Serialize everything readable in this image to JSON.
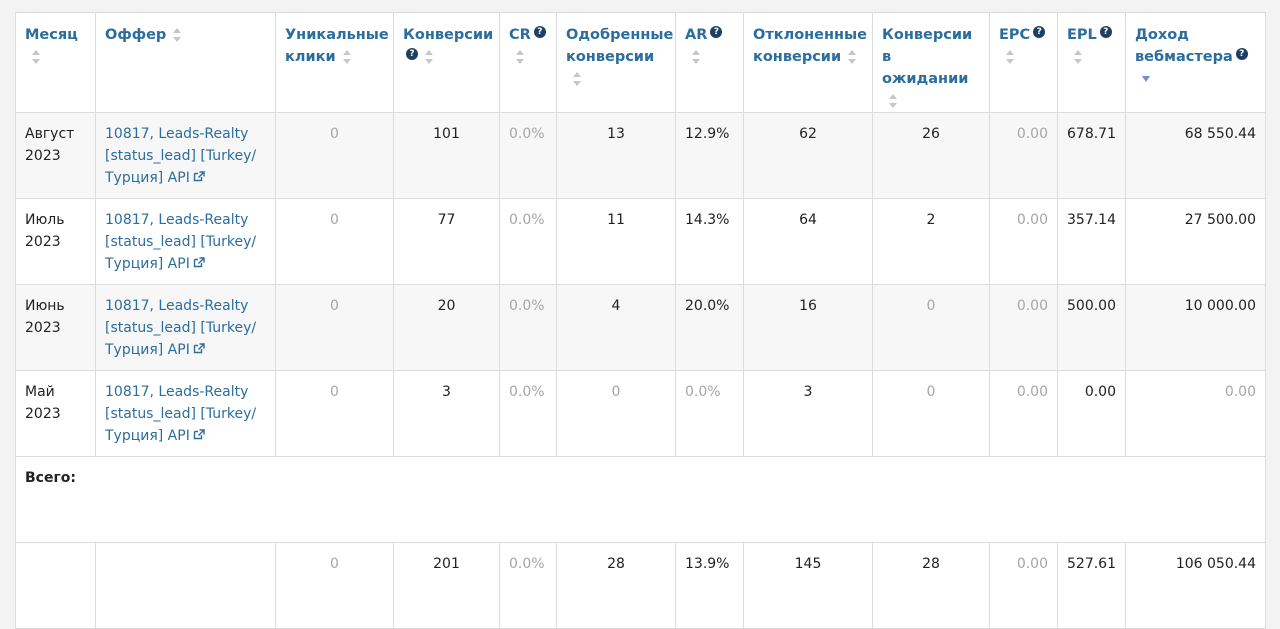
{
  "table": {
    "headers": [
      {
        "label": "Месяц",
        "sortable": true,
        "help": false,
        "sort_state": "none"
      },
      {
        "label": "Оффер",
        "sortable": true,
        "help": false,
        "sort_state": "none"
      },
      {
        "label": "Уникальные клики",
        "sortable": true,
        "help": false,
        "sort_state": "none"
      },
      {
        "label": "Конверсии",
        "sortable": true,
        "help": true,
        "sort_state": "none"
      },
      {
        "label": "CR",
        "sortable": true,
        "help": true,
        "sort_state": "none"
      },
      {
        "label": "Одобренные конверсии",
        "sortable": true,
        "help": false,
        "sort_state": "none"
      },
      {
        "label": "AR",
        "sortable": true,
        "help": true,
        "sort_state": "none"
      },
      {
        "label": "Отклоненные конверсии",
        "sortable": true,
        "help": false,
        "sort_state": "none"
      },
      {
        "label": "Конверсии в ожидании",
        "sortable": true,
        "help": false,
        "sort_state": "none"
      },
      {
        "label": "EPC",
        "sortable": true,
        "help": true,
        "sort_state": "none"
      },
      {
        "label": "EPL",
        "sortable": true,
        "help": true,
        "sort_state": "none"
      },
      {
        "label": "Доход вебмастера",
        "sortable": true,
        "help": true,
        "sort_state": "desc"
      }
    ],
    "rows": [
      {
        "month": "Август 2023",
        "offer": "10817, Leads-Realty [status_lead] [Turkey/ Турция] API",
        "unique_clicks": "0",
        "conversions": "101",
        "cr": "0.0%",
        "approved": "13",
        "ar": "12.9%",
        "rejected": "62",
        "pending": "26",
        "epc": "0.00",
        "epl": "678.71",
        "income": "68 550.44"
      },
      {
        "month": "Июль 2023",
        "offer": "10817, Leads-Realty [status_lead] [Turkey/ Турция] API",
        "unique_clicks": "0",
        "conversions": "77",
        "cr": "0.0%",
        "approved": "11",
        "ar": "14.3%",
        "rejected": "64",
        "pending": "2",
        "epc": "0.00",
        "epl": "357.14",
        "income": "27 500.00"
      },
      {
        "month": "Июнь 2023",
        "offer": "10817, Leads-Realty [status_lead] [Turkey/ Турция] API",
        "unique_clicks": "0",
        "conversions": "20",
        "cr": "0.0%",
        "approved": "4",
        "ar": "20.0%",
        "rejected": "16",
        "pending": "0",
        "epc": "0.00",
        "epl": "500.00",
        "income": "10 000.00"
      },
      {
        "month": "Май 2023",
        "offer": "10817, Leads-Realty [status_lead] [Turkey/ Турция] API",
        "unique_clicks": "0",
        "conversions": "3",
        "cr": "0.0%",
        "approved": "0",
        "ar": "0.0%",
        "rejected": "3",
        "pending": "0",
        "epc": "0.00",
        "epl": "0.00",
        "income": "0.00"
      }
    ],
    "total_label": "Всего:",
    "total": {
      "unique_clicks": "0",
      "conversions": "201",
      "cr": "0.0%",
      "approved": "28",
      "ar": "13.9%",
      "rejected": "145",
      "pending": "28",
      "epc": "0.00",
      "epl": "527.61",
      "income": "106 050.44"
    }
  },
  "icons": {
    "sort": "sort-arrows-icon",
    "sort_desc": "sort-desc-icon",
    "help": "question-circle-icon",
    "external": "external-link-icon"
  },
  "colors": {
    "link": "#2b6d9e",
    "muted": "#a6a6a6",
    "help_bg": "#1f3f63",
    "row_alt": "#f7f7f7",
    "border": "#dcdcdc"
  }
}
